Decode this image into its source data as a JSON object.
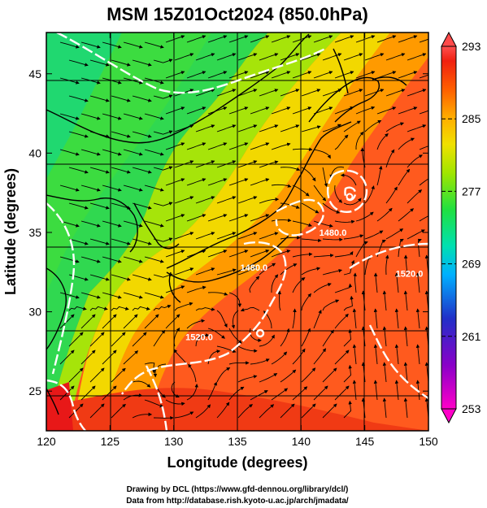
{
  "title": "MSM 15Z01Oct2024 (850.0hPa)",
  "xlabel": "Longitude (degrees)",
  "ylabel": "Latitude  (degrees)",
  "xticks": [
    120,
    125,
    130,
    135,
    140,
    145,
    150
  ],
  "yticks": [
    25,
    30,
    35,
    40,
    45
  ],
  "xlim": [
    120,
    150
  ],
  "ylim": [
    22.5,
    47.6
  ],
  "colorbar": {
    "ticks": [
      293,
      285,
      277,
      269,
      261,
      253
    ],
    "range": [
      253,
      293
    ],
    "colors": [
      "#ff00c8",
      "#9a00c8",
      "#2a00c0",
      "#0050ff",
      "#00b4ff",
      "#00e0c0",
      "#00e060",
      "#40e000",
      "#c8e600",
      "#ffd000",
      "#ff8c00",
      "#ff4000",
      "#e81810",
      "#ff6464"
    ]
  },
  "contours": [
    {
      "label": "1480.0",
      "lon": 136.3,
      "lat": 32.6
    },
    {
      "label": "1480.0",
      "lon": 142.5,
      "lat": 34.8
    },
    {
      "label": "1520.0",
      "lon": 148.5,
      "lat": 32.2
    },
    {
      "label": "1520.0",
      "lon": 132.0,
      "lat": 28.2
    }
  ],
  "credits": [
    "Drawing by DCL (https://www.gfd-dennou.org/library/dcl/)",
    "Data from http://database.rish.kyoto-u.ac.jp/arch/jmadata/"
  ]
}
